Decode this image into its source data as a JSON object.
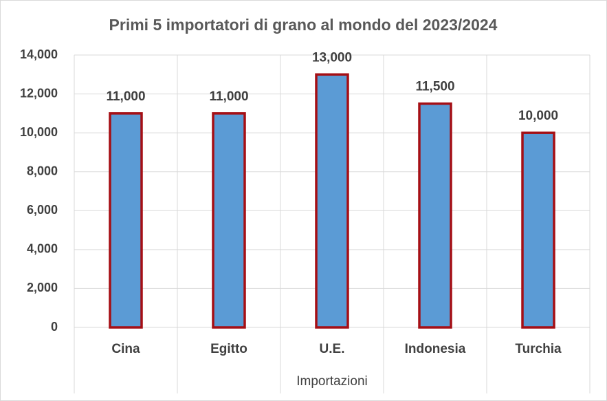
{
  "chart_data": {
    "type": "bar",
    "title": "Primi 5 importatori di grano al mondo del 2023/2024",
    "x_label": "Importazioni",
    "categories": [
      "Cina",
      "Egitto",
      "U.E.",
      "Indonesia",
      "Turchia"
    ],
    "values": [
      11000,
      11000,
      13000,
      11500,
      10000
    ],
    "value_labels": [
      "11,000",
      "11,000",
      "13,000",
      "11,500",
      "10,000"
    ],
    "color": "#5b9bd5",
    "edge_color": "#a50f15",
    "ylim": [
      0,
      14000
    ],
    "yticks": [
      0,
      {
        "value": 2000,
        "label": "2,000"
      },
      {
        "value": 4000,
        "label": "4,000"
      },
      {
        "value": 6000,
        "label": "6,000"
      },
      {
        "value": 8000,
        "label": "8,000"
      },
      {
        "value": 10000,
        "label": "10,000"
      },
      {
        "value": 12000,
        "label": "12,000"
      },
      {
        "value": 14000,
        "label": "14,000"
      }
    ],
    "grid": true
  }
}
